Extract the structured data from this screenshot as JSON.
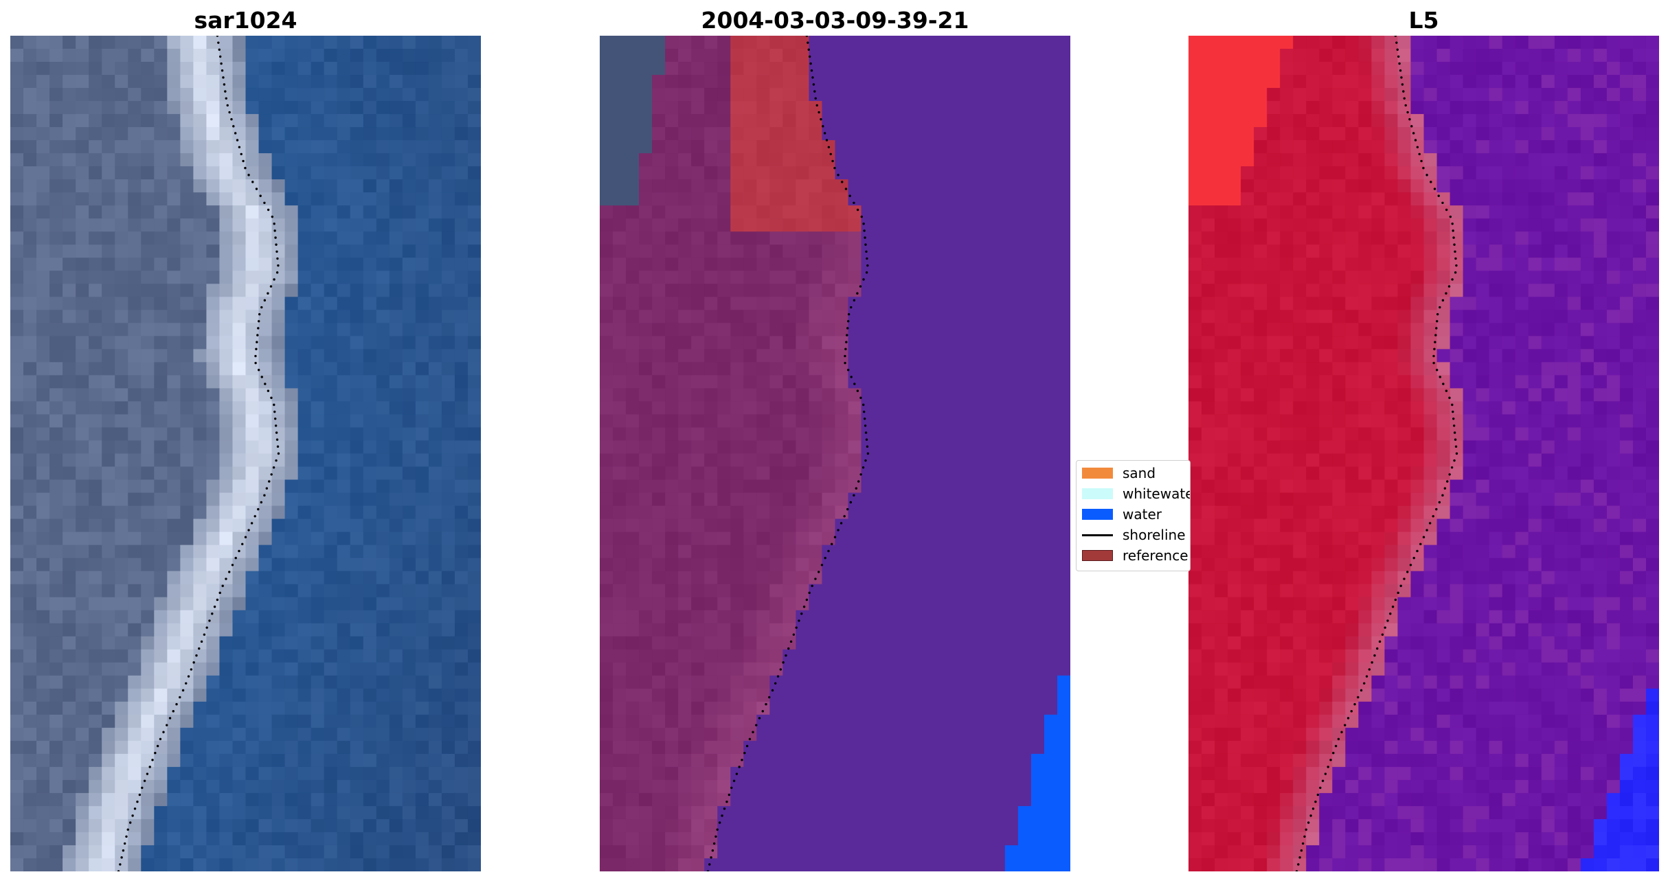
{
  "panels": [
    {
      "title": "sar1024",
      "kind": "rgb"
    },
    {
      "title": "2004-03-03-09-39-21",
      "kind": "classified"
    },
    {
      "title": "L5",
      "kind": "index"
    }
  ],
  "legend": {
    "items": [
      {
        "label": "sand",
        "color": "#f28a3c",
        "type": "patch"
      },
      {
        "label": "whitewater",
        "color": "#ccfbfb",
        "type": "patch"
      },
      {
        "label": "water",
        "color": "#0a5cff",
        "type": "patch"
      },
      {
        "label": "shoreline",
        "color": "#000000",
        "type": "line"
      },
      {
        "label": "reference",
        "color": "#a33a3a",
        "type": "patch"
      }
    ]
  },
  "colors": {
    "rgb_water": "#2a5a96",
    "rgb_land": "#5a6a8c",
    "rgb_whitewater": "#e8f0ff",
    "class_land": "#7c2a6a",
    "class_water": "#5a2a9a",
    "class_reference": "#b8384a",
    "class_water_blue": "#0a5cff",
    "index_land": "#c8143a",
    "index_water": "#6a14a8",
    "index_blue": "#2a2aff"
  }
}
